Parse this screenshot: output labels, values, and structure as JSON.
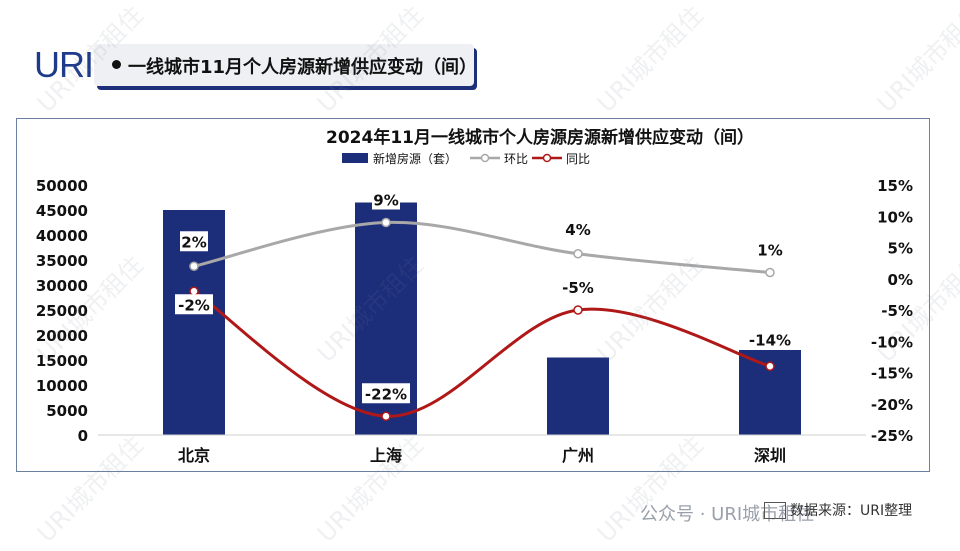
{
  "header": {
    "logo": "URI",
    "title": "一线城市11月个人房源新增供应变动（间）"
  },
  "watermark_text": "URI城市租住",
  "footer": {
    "wechat": "公众号 · URI城市租住",
    "source": "数据来源：URI整理"
  },
  "colors": {
    "bar": "#1c2d7a",
    "mom_line": "#a8a8a8",
    "yoy_line": "#b01818",
    "frame": "#6b7f9e"
  },
  "chart_data": {
    "type": "bar",
    "title": "2024年11月一线城市个人房源房源新增供应变动（间）",
    "categories": [
      "北京",
      "上海",
      "广州",
      "深圳"
    ],
    "legend": [
      "新增房源（套）",
      "环比",
      "同比"
    ],
    "legend_position": "top",
    "series": [
      {
        "name": "新增房源（套）",
        "type": "bar",
        "axis": "left",
        "values": [
          45000,
          46500,
          15500,
          17000
        ]
      },
      {
        "name": "环比",
        "type": "line",
        "axis": "right",
        "values": [
          2,
          9,
          4,
          1
        ],
        "labels": [
          "2%",
          "9%",
          "4%",
          "1%"
        ]
      },
      {
        "name": "同比",
        "type": "line",
        "axis": "right",
        "values": [
          -2,
          -22,
          -5,
          -14
        ],
        "labels": [
          "-2%",
          "-22%",
          "-5%",
          "-14%"
        ]
      }
    ],
    "y_left": {
      "min": 0,
      "max": 50000,
      "ticks": [
        0,
        5000,
        10000,
        15000,
        20000,
        25000,
        30000,
        35000,
        40000,
        45000,
        50000
      ],
      "tick_labels": [
        "0",
        "5000",
        "10000",
        "15000",
        "20000",
        "25000",
        "30000",
        "35000",
        "40000",
        "45000",
        "50000"
      ]
    },
    "y_right": {
      "min": -25,
      "max": 15,
      "ticks": [
        -25,
        -20,
        -15,
        -10,
        -5,
        0,
        5,
        10,
        15
      ],
      "tick_labels": [
        "-25%",
        "-20%",
        "-15%",
        "-10%",
        "-5%",
        "0%",
        "5%",
        "10%",
        "15%"
      ]
    },
    "grid": false
  }
}
